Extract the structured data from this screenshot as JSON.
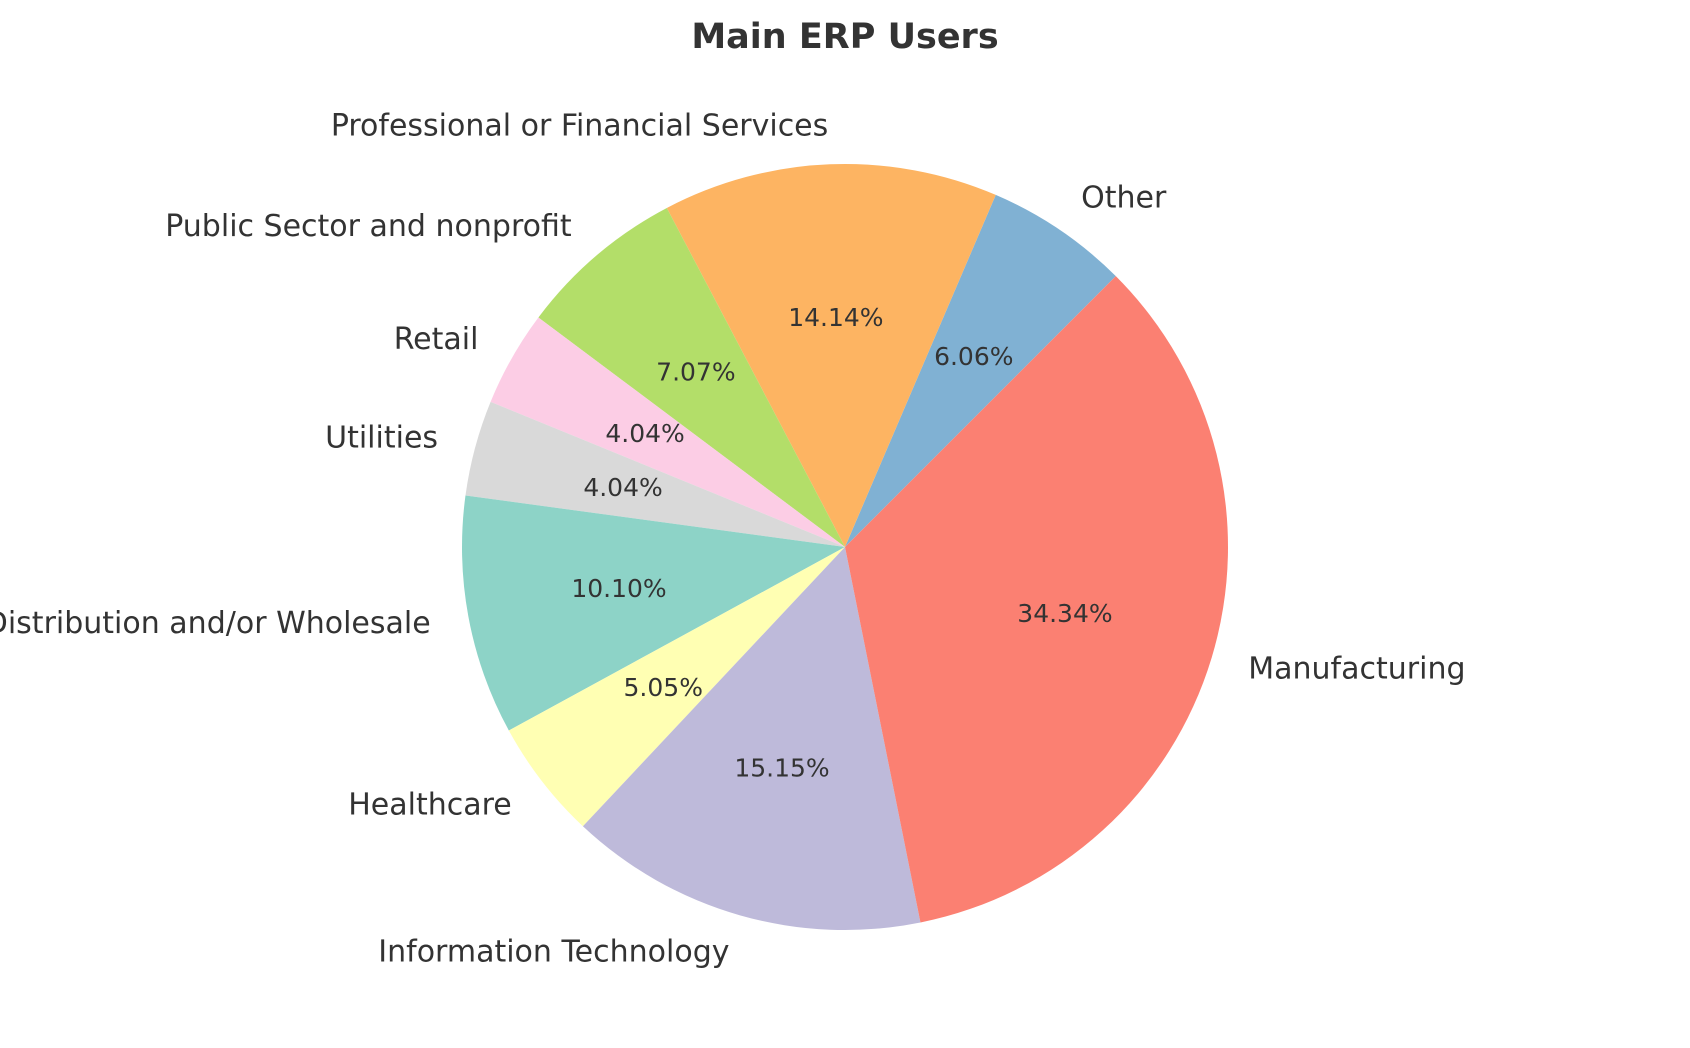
{
  "chart_data": {
    "type": "pie",
    "title": "Main ERP Users",
    "start_angle_deg": 45,
    "direction": "counterclockwise",
    "slices": [
      {
        "label": "Other",
        "value": 6.06,
        "pct_text": "6.06%",
        "color": "#80b1d3"
      },
      {
        "label": "Professional or Financial Services",
        "value": 14.14,
        "pct_text": "14.14%",
        "color": "#fdb462"
      },
      {
        "label": "Public Sector and nonprofit",
        "value": 7.07,
        "pct_text": "7.07%",
        "color": "#b3de69"
      },
      {
        "label": "Retail",
        "value": 4.04,
        "pct_text": "4.04%",
        "color": "#fccde5"
      },
      {
        "label": "Utilities",
        "value": 4.04,
        "pct_text": "4.04%",
        "color": "#d9d9d9"
      },
      {
        "label": "Distribution and/or Wholesale",
        "value": 10.1,
        "pct_text": "10.10%",
        "color": "#8dd3c7"
      },
      {
        "label": "Healthcare",
        "value": 5.05,
        "pct_text": "5.05%",
        "color": "#ffffb3"
      },
      {
        "label": "Information Technology",
        "value": 15.15,
        "pct_text": "15.15%",
        "color": "#bebada"
      },
      {
        "label": "Manufacturing",
        "value": 34.34,
        "pct_text": "34.34%",
        "color": "#fb8072"
      }
    ]
  }
}
